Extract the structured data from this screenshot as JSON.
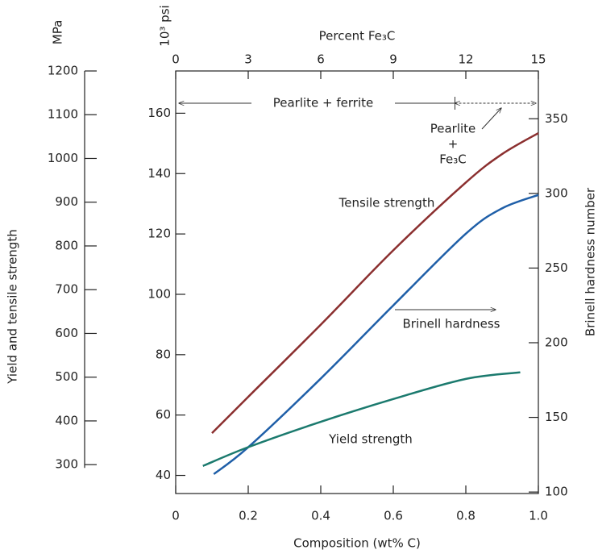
{
  "chart_data": {
    "type": "line",
    "xlabel": "Composition (wt% C)",
    "x2label": "Percent Fe₃C",
    "ylabel": "Yield and tensile strength",
    "y_unit": "MPa",
    "y2_unit": "10³ psi",
    "y3label": "Brinell hardness number",
    "xlim": [
      0,
      1
    ],
    "xticks": [
      0,
      0.2,
      0.4,
      0.6,
      0.8,
      {
        "value": 1,
        "label": "1.0"
      }
    ],
    "x2lim": [
      0,
      15
    ],
    "x2ticks": [
      0,
      3,
      6,
      9,
      12,
      15
    ],
    "ylim": [
      234,
      1200
    ],
    "yticks": [
      300,
      400,
      500,
      600,
      700,
      800,
      900,
      1000,
      1100,
      1200
    ],
    "y2lim": [
      34,
      174
    ],
    "y2ticks": [
      40,
      60,
      80,
      100,
      120,
      140,
      160
    ],
    "y3lim": [
      99,
      382
    ],
    "y3ticks": [
      100,
      150,
      200,
      250,
      300,
      350
    ],
    "series": [
      {
        "name": "Tensile strength",
        "color": "#8b2f2f",
        "axis": "y",
        "x": [
          0.1,
          0.2,
          0.4,
          0.6,
          0.8,
          0.9,
          1.0
        ],
        "values": [
          372,
          455,
          620,
          790,
          945,
          1010,
          1058
        ]
      },
      {
        "name": "Brinell hardness",
        "color": "#1f5fa8",
        "axis": "y3",
        "x": [
          0.105,
          0.2,
          0.4,
          0.6,
          0.8,
          0.9,
          1.0
        ],
        "values": [
          112,
          130,
          176,
          225,
          273,
          290,
          299
        ]
      },
      {
        "name": "Yield strength",
        "color": "#1b7a6e",
        "axis": "y",
        "x": [
          0.075,
          0.2,
          0.4,
          0.6,
          0.8,
          0.95
        ],
        "values": [
          297,
          340,
          398,
          450,
          496,
          511
        ]
      }
    ],
    "phase_boundary": 0.77,
    "annotations": {
      "pearlite_ferrite": "Pearlite + ferrite",
      "pearlite_fe3c": [
        "Pearlite",
        "+",
        "Fe₃C"
      ]
    }
  }
}
